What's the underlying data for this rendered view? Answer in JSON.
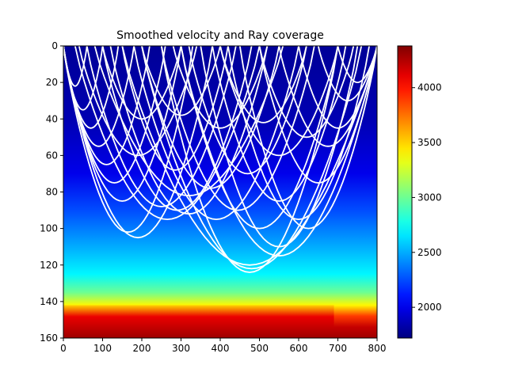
{
  "chart_data": {
    "type": "heatmap",
    "title": "Smoothed velocity and Ray coverage",
    "xlabel": "",
    "ylabel": "",
    "xlim": [
      0,
      800
    ],
    "ylim": [
      160,
      0
    ],
    "x_ticks": [
      "0",
      "100",
      "200",
      "300",
      "400",
      "500",
      "600",
      "700",
      "800"
    ],
    "y_ticks": [
      "0",
      "20",
      "40",
      "60",
      "80",
      "100",
      "120",
      "140",
      "160"
    ],
    "colorbar": {
      "range": [
        1720,
        4380
      ],
      "ticks": [
        "2000",
        "2500",
        "3000",
        "3500",
        "4000"
      ],
      "colormap": "jet"
    },
    "velocity_profile": [
      {
        "depth": 0,
        "velocity": 1780
      },
      {
        "depth": 40,
        "velocity": 1850
      },
      {
        "depth": 70,
        "velocity": 2000
      },
      {
        "depth": 90,
        "velocity": 2250
      },
      {
        "depth": 110,
        "velocity": 2500
      },
      {
        "depth": 125,
        "velocity": 2700
      },
      {
        "depth": 135,
        "velocity": 3000
      },
      {
        "depth": 142,
        "velocity": 3400
      },
      {
        "depth": 148,
        "velocity": 3900
      },
      {
        "depth": 154,
        "velocity": 4200
      },
      {
        "depth": 160,
        "velocity": 4300
      }
    ],
    "high_velocity_layer": {
      "x_end": 690,
      "depth_top": 142,
      "velocity": 4300
    },
    "ray_color": "#ffffff",
    "rays": [
      {
        "x_start": 0,
        "x_end": 380,
        "max_depth": 105
      },
      {
        "x_start": 0,
        "x_end": 330,
        "max_depth": 102
      },
      {
        "x_start": 0,
        "x_end": 300,
        "max_depth": 85
      },
      {
        "x_start": 0,
        "x_end": 260,
        "max_depth": 75
      },
      {
        "x_start": 0,
        "x_end": 220,
        "max_depth": 65
      },
      {
        "x_start": 0,
        "x_end": 180,
        "max_depth": 55
      },
      {
        "x_start": 0,
        "x_end": 140,
        "max_depth": 45
      },
      {
        "x_start": 0,
        "x_end": 100,
        "max_depth": 35
      },
      {
        "x_start": 0,
        "x_end": 60,
        "max_depth": 22
      },
      {
        "x_start": 60,
        "x_end": 440,
        "max_depth": 88
      },
      {
        "x_start": 100,
        "x_end": 480,
        "max_depth": 90
      },
      {
        "x_start": 120,
        "x_end": 520,
        "max_depth": 92
      },
      {
        "x_start": 150,
        "x_end": 420,
        "max_depth": 68
      },
      {
        "x_start": 180,
        "x_end": 600,
        "max_depth": 95
      },
      {
        "x_start": 200,
        "x_end": 550,
        "max_depth": 78
      },
      {
        "x_start": 250,
        "x_end": 640,
        "max_depth": 90
      },
      {
        "x_start": 300,
        "x_end": 700,
        "max_depth": 100
      },
      {
        "x_start": 320,
        "x_end": 620,
        "max_depth": 70
      },
      {
        "x_start": 350,
        "x_end": 750,
        "max_depth": 110
      },
      {
        "x_start": 380,
        "x_end": 720,
        "max_depth": 85
      },
      {
        "x_start": 400,
        "x_end": 700,
        "max_depth": 60
      },
      {
        "x_start": 420,
        "x_end": 780,
        "max_depth": 95
      },
      {
        "x_start": 450,
        "x_end": 800,
        "max_depth": 100
      },
      {
        "x_start": 500,
        "x_end": 800,
        "max_depth": 75
      },
      {
        "x_start": 550,
        "x_end": 800,
        "max_depth": 55
      },
      {
        "x_start": 600,
        "x_end": 800,
        "max_depth": 45
      },
      {
        "x_start": 650,
        "x_end": 800,
        "max_depth": 30
      },
      {
        "x_start": 700,
        "x_end": 800,
        "max_depth": 20
      },
      {
        "x_start": 200,
        "x_end": 760,
        "max_depth": 122
      },
      {
        "x_start": 250,
        "x_end": 700,
        "max_depth": 124
      },
      {
        "x_start": 150,
        "x_end": 800,
        "max_depth": 120
      },
      {
        "x_start": 80,
        "x_end": 560,
        "max_depth": 82
      },
      {
        "x_start": 30,
        "x_end": 500,
        "max_depth": 95
      },
      {
        "x_start": 40,
        "x_end": 340,
        "max_depth": 60
      },
      {
        "x_start": 100,
        "x_end": 300,
        "max_depth": 40
      },
      {
        "x_start": 200,
        "x_end": 400,
        "max_depth": 38
      },
      {
        "x_start": 280,
        "x_end": 520,
        "max_depth": 45
      },
      {
        "x_start": 300,
        "x_end": 800,
        "max_depth": 115
      },
      {
        "x_start": 400,
        "x_end": 620,
        "max_depth": 42
      },
      {
        "x_start": 500,
        "x_end": 740,
        "max_depth": 50
      }
    ]
  }
}
